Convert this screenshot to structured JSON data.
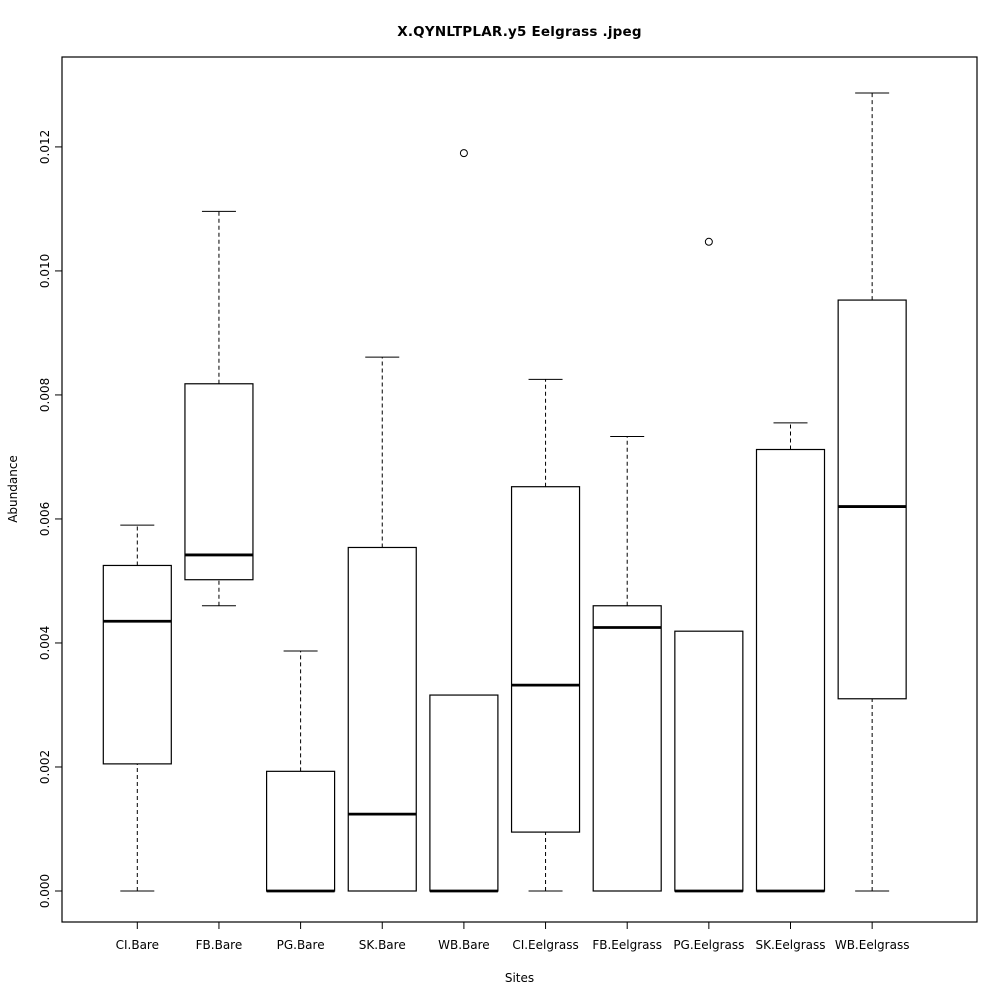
{
  "chart_data": {
    "type": "boxplot",
    "title": "X.QYNLTPLAR.y5 Eelgrass .jpeg",
    "xlabel": "Sites",
    "ylabel": "Abundance",
    "ylim": [
      -0.0005,
      0.01345
    ],
    "yticks": [
      "0.000",
      "0.002",
      "0.004",
      "0.006",
      "0.008",
      "0.010",
      "0.012"
    ],
    "grid": false,
    "legend": "none",
    "categories": [
      "CI.Bare",
      "FB.Bare",
      "PG.Bare",
      "SK.Bare",
      "WB.Bare",
      "CI.Eelgrass",
      "FB.Eelgrass",
      "PG.Eelgrass",
      "SK.Eelgrass",
      "WB.Eelgrass"
    ],
    "boxes": [
      {
        "label": "CI.Bare",
        "whisker_low": 0.0,
        "q1": 0.00205,
        "median": 0.00435,
        "q3": 0.00525,
        "whisker_high": 0.0059,
        "outliers": []
      },
      {
        "label": "FB.Bare",
        "whisker_low": 0.0046,
        "q1": 0.00502,
        "median": 0.00542,
        "q3": 0.00818,
        "whisker_high": 0.01096,
        "outliers": []
      },
      {
        "label": "PG.Bare",
        "whisker_low": 0.0,
        "q1": 0.0,
        "median": 0.0,
        "q3": 0.00193,
        "whisker_high": 0.00387,
        "outliers": []
      },
      {
        "label": "SK.Bare",
        "whisker_low": 0.0,
        "q1": 0.0,
        "median": 0.00124,
        "q3": 0.00554,
        "whisker_high": 0.00861,
        "outliers": []
      },
      {
        "label": "WB.Bare",
        "whisker_low": 0.0,
        "q1": 0.0,
        "median": 0.0,
        "q3": 0.00316,
        "whisker_high": 0.00316,
        "outliers": [
          0.0119
        ]
      },
      {
        "label": "CI.Eelgrass",
        "whisker_low": 0.0,
        "q1": 0.00095,
        "median": 0.00332,
        "q3": 0.00652,
        "whisker_high": 0.00825,
        "outliers": []
      },
      {
        "label": "FB.Eelgrass",
        "whisker_low": 0.0,
        "q1": 0.0,
        "median": 0.00425,
        "q3": 0.0046,
        "whisker_high": 0.00733,
        "outliers": []
      },
      {
        "label": "PG.Eelgrass",
        "whisker_low": 0.0,
        "q1": 0.0,
        "median": 0.0,
        "q3": 0.00419,
        "whisker_high": 0.00419,
        "outliers": [
          0.01047
        ]
      },
      {
        "label": "SK.Eelgrass",
        "whisker_low": 0.0,
        "q1": 0.0,
        "median": 0.0,
        "q3": 0.00712,
        "whisker_high": 0.00755,
        "outliers": []
      },
      {
        "label": "WB.Eelgrass",
        "whisker_low": 0.0,
        "q1": 0.0031,
        "median": 0.0062,
        "q3": 0.00953,
        "whisker_high": 0.01287,
        "outliers": []
      }
    ],
    "colors": {
      "stroke": "#000000",
      "box_fill": "#ffffff",
      "background": "#ffffff"
    }
  }
}
